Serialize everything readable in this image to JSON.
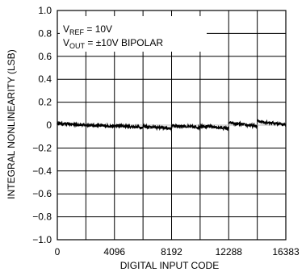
{
  "chart_data": {
    "type": "line",
    "title": "",
    "xlabel": "DIGITAL INPUT CODE",
    "ylabel": "INTEGRAL NONLINEARITY (LSB)",
    "xlim": [
      0,
      16383
    ],
    "ylim": [
      -1.0,
      1.0
    ],
    "x_ticks": [
      0,
      4096,
      8192,
      12288,
      16383
    ],
    "x_tick_labels": [
      "0",
      "4096",
      "8192",
      "12288",
      "16383"
    ],
    "x_gridlines": [
      0,
      2048,
      4096,
      6144,
      8192,
      10240,
      12288,
      14336,
      16383
    ],
    "y_ticks": [
      -1.0,
      -0.8,
      -0.6,
      -0.4,
      -0.2,
      0,
      0.2,
      0.4,
      0.6,
      0.8,
      1.0
    ],
    "y_tick_labels": [
      "−1.0",
      "−0.8",
      "−0.6",
      "−0.4",
      "−0.2",
      "0",
      "0.2",
      "0.4",
      "0.6",
      "0.8",
      "1.0"
    ],
    "grid": true,
    "legend": "none",
    "annotations": [
      {
        "main": "V",
        "sub": "REF",
        "rest": " = 10V"
      },
      {
        "main": "V",
        "sub": "OUT",
        "rest": " = ±10V BIPOLAR"
      }
    ],
    "series": [
      {
        "color": "#000000",
        "segments": [
          {
            "x": [
              0,
              2047
            ],
            "y": [
              0.015,
              0.0
            ]
          },
          {
            "x": [
              2048,
              4095
            ],
            "y": [
              0.0,
              -0.01
            ]
          },
          {
            "x": [
              4096,
              6143
            ],
            "y": [
              -0.005,
              -0.02
            ]
          },
          {
            "x": [
              6144,
              8191
            ],
            "y": [
              -0.01,
              -0.03
            ]
          },
          {
            "x": [
              8192,
              10239
            ],
            "y": [
              -0.005,
              -0.02
            ]
          },
          {
            "x": [
              10240,
              12287
            ],
            "y": [
              -0.005,
              -0.03
            ]
          },
          {
            "x": [
              12288,
              14335
            ],
            "y": [
              0.02,
              -0.01
            ]
          },
          {
            "x": [
              14336,
              16383
            ],
            "y": [
              0.035,
              0.005
            ]
          }
        ]
      }
    ]
  }
}
